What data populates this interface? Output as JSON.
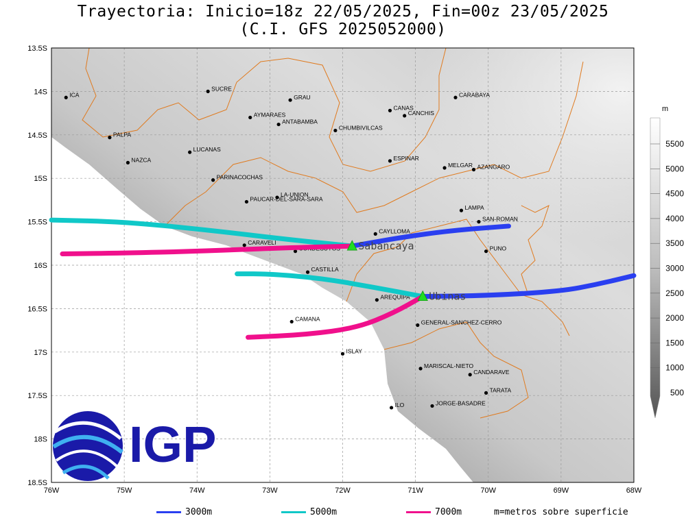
{
  "title": {
    "line1": "Trayectoria: Inicio=18z 22/05/2025, Fin=00z 23/05/2025",
    "line2": "(C.I. GFS 2025052000)"
  },
  "axes": {
    "lat_labels": [
      "13.5S",
      "14S",
      "14.5S",
      "15S",
      "15.5S",
      "16S",
      "16.5S",
      "17S",
      "17.5S",
      "18S",
      "18.5S"
    ],
    "lon_labels": [
      "76W",
      "75W",
      "74W",
      "73W",
      "72W",
      "71W",
      "70W",
      "69W",
      "68W"
    ]
  },
  "colorbar": {
    "unit": "m",
    "labels": [
      "5500",
      "5000",
      "4500",
      "4000",
      "3500",
      "3000",
      "2500",
      "2000",
      "1500",
      "1000",
      "500"
    ]
  },
  "places": [
    {
      "name": "ICA",
      "lon": -75.8,
      "lat": -14.07
    },
    {
      "name": "SUCRE",
      "lon": -73.85,
      "lat": -14.0
    },
    {
      "name": "GRAU",
      "lon": -72.72,
      "lat": -14.1
    },
    {
      "name": "AYMARAES",
      "lon": -73.27,
      "lat": -14.3
    },
    {
      "name": "ANTABAMBA",
      "lon": -72.88,
      "lat": -14.38
    },
    {
      "name": "CHUMBIVILCAS",
      "lon": -72.1,
      "lat": -14.45
    },
    {
      "name": "CANAS",
      "lon": -71.35,
      "lat": -14.22
    },
    {
      "name": "CANCHIS",
      "lon": -71.15,
      "lat": -14.28
    },
    {
      "name": "CARABAYA",
      "lon": -70.45,
      "lat": -14.07
    },
    {
      "name": "PALPA",
      "lon": -75.2,
      "lat": -14.53
    },
    {
      "name": "NAZCA",
      "lon": -74.95,
      "lat": -14.82
    },
    {
      "name": "LUCANAS",
      "lon": -74.1,
      "lat": -14.7
    },
    {
      "name": "ESPINAR",
      "lon": -71.35,
      "lat": -14.8
    },
    {
      "name": "MELGAR",
      "lon": -70.6,
      "lat": -14.88
    },
    {
      "name": "AZANGARO",
      "lon": -70.2,
      "lat": -14.9
    },
    {
      "name": "PARINACOCHAS",
      "lon": -73.78,
      "lat": -15.02
    },
    {
      "name": "LA-UNION",
      "lon": -72.9,
      "lat": -15.22
    },
    {
      "name": "PAUCAR-DEL-SARA-SARA",
      "lon": -73.32,
      "lat": -15.27
    },
    {
      "name": "LAMPA",
      "lon": -70.37,
      "lat": -15.37
    },
    {
      "name": "SAN-ROMAN",
      "lon": -70.13,
      "lat": -15.5
    },
    {
      "name": "CAYLLOMA",
      "lon": -71.55,
      "lat": -15.64
    },
    {
      "name": "CARAVELI",
      "lon": -73.35,
      "lat": -15.77
    },
    {
      "name": "CONDESUYOS",
      "lon": -72.65,
      "lat": -15.84
    },
    {
      "name": "PUNO",
      "lon": -70.03,
      "lat": -15.84
    },
    {
      "name": "CASTILLA",
      "lon": -72.48,
      "lat": -16.08
    },
    {
      "name": "AREQUIPA",
      "lon": -71.53,
      "lat": -16.4
    },
    {
      "name": "CAMANA",
      "lon": -72.7,
      "lat": -16.65
    },
    {
      "name": "GENERAL-SANCHEZ-CERRO",
      "lon": -70.97,
      "lat": -16.69
    },
    {
      "name": "ISLAY",
      "lon": -72.0,
      "lat": -17.02
    },
    {
      "name": "MARISCAL-NIETO",
      "lon": -70.93,
      "lat": -17.19
    },
    {
      "name": "CANDARAVE",
      "lon": -70.25,
      "lat": -17.26
    },
    {
      "name": "TARATA",
      "lon": -70.03,
      "lat": -17.47
    },
    {
      "name": "ILO",
      "lon": -71.33,
      "lat": -17.64
    },
    {
      "name": "JORGE-BASADRE",
      "lon": -70.77,
      "lat": -17.62
    }
  ],
  "volcanoes": [
    {
      "name": "Sabancaya",
      "lon": -71.87,
      "lat": -15.78
    },
    {
      "name": "Ubinas",
      "lon": -70.9,
      "lat": -16.36
    }
  ],
  "trajectories": [
    {
      "level": "3000m",
      "color": "#2a3ff0",
      "volcano": "Sabancaya",
      "points": [
        [
          -71.87,
          -15.78
        ],
        [
          -71.2,
          -15.68
        ],
        [
          -70.5,
          -15.6
        ],
        [
          -69.72,
          -15.55
        ]
      ]
    },
    {
      "level": "5000m",
      "color": "#10c8c8",
      "volcano": "Sabancaya",
      "points": [
        [
          -71.87,
          -15.78
        ],
        [
          -72.8,
          -15.7
        ],
        [
          -73.8,
          -15.6
        ],
        [
          -75.0,
          -15.5
        ],
        [
          -76.0,
          -15.48
        ]
      ]
    },
    {
      "level": "7000m",
      "color": "#f0108c",
      "volcano": "Sabancaya",
      "points": [
        [
          -71.87,
          -15.78
        ],
        [
          -72.8,
          -15.8
        ],
        [
          -74.0,
          -15.84
        ],
        [
          -75.0,
          -15.86
        ],
        [
          -75.85,
          -15.87
        ]
      ]
    },
    {
      "level": "3000m",
      "color": "#2a3ff0",
      "volcano": "Ubinas",
      "points": [
        [
          -70.9,
          -16.36
        ],
        [
          -70.0,
          -16.35
        ],
        [
          -69.0,
          -16.3
        ],
        [
          -68.5,
          -16.22
        ],
        [
          -68.0,
          -16.12
        ]
      ]
    },
    {
      "level": "5000m",
      "color": "#10c8c8",
      "volcano": "Ubinas",
      "points": [
        [
          -70.9,
          -16.36
        ],
        [
          -71.6,
          -16.25
        ],
        [
          -72.3,
          -16.15
        ],
        [
          -73.0,
          -16.1
        ],
        [
          -73.45,
          -16.1
        ]
      ]
    },
    {
      "level": "7000m",
      "color": "#f0108c",
      "volcano": "Ubinas",
      "points": [
        [
          -70.9,
          -16.36
        ],
        [
          -71.3,
          -16.55
        ],
        [
          -71.8,
          -16.72
        ],
        [
          -72.5,
          -16.8
        ],
        [
          -73.3,
          -16.83
        ]
      ]
    }
  ],
  "legend": {
    "items": [
      {
        "label": "3000m",
        "color": "#2a3ff0"
      },
      {
        "label": "5000m",
        "color": "#10c8c8"
      },
      {
        "label": "7000m",
        "color": "#f0108c"
      }
    ],
    "note": "m=metros sobre superficie"
  },
  "logo": {
    "text": "IGP",
    "color": "#1a1aa8"
  }
}
